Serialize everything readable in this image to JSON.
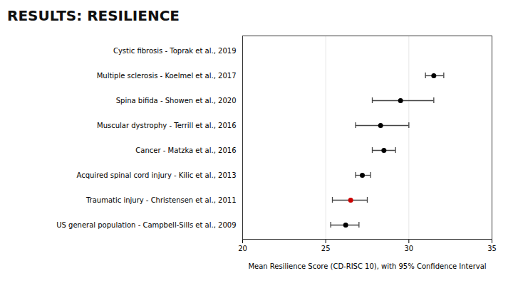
{
  "chart_data": {
    "type": "forest",
    "title": "RESULTS: RESILIENCE",
    "xlabel": "Mean Resilience Score (CD-RISC 10), with 95% Confidence Interval",
    "categories": [
      "Cystic fibrosis - Toprak et al., 2019",
      "Multiple sclerosis - Koelmel et al., 2017",
      "Spina bifida - Showen et al., 2020",
      "Muscular dystrophy - Terrill et al., 2016",
      "Cancer - Matzka et al., 2016",
      "Acquired spinal cord injury - Kilic et al., 2013",
      "Traumatic injury - Christensen et al., 2011",
      "US general population - Campbell-Sills et al., 2009"
    ],
    "values": [
      null,
      31.5,
      29.5,
      28.3,
      28.5,
      27.2,
      26.5,
      26.2
    ],
    "ci_low": [
      null,
      31.0,
      27.8,
      26.8,
      27.8,
      26.8,
      25.4,
      25.3
    ],
    "ci_high": [
      null,
      32.1,
      31.5,
      30.0,
      29.2,
      27.7,
      27.5,
      27.0
    ],
    "colors": [
      "#000000",
      "#000000",
      "#000000",
      "#000000",
      "#000000",
      "#000000",
      "#cc0000",
      "#000000"
    ],
    "xlim": [
      20,
      35
    ],
    "xticks": [
      20,
      25,
      30,
      35
    ],
    "grid": true
  }
}
